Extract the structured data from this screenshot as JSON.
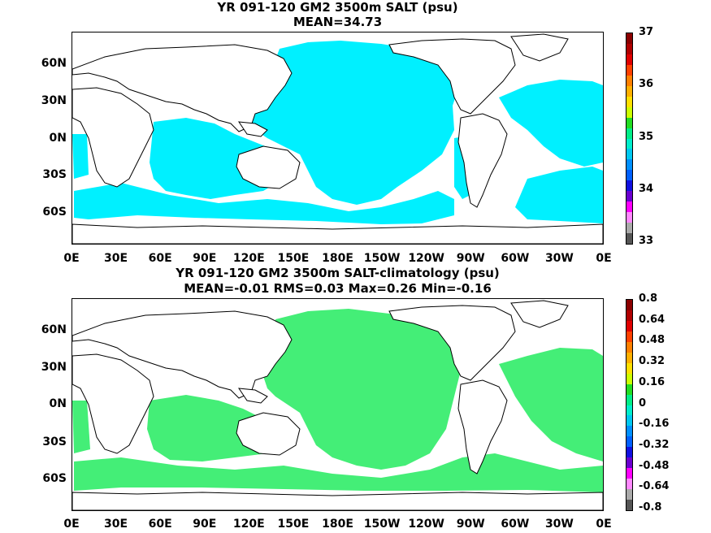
{
  "panels": [
    {
      "title_line1": "YR 091-120 GM2 3500m SALT (psu)",
      "title_line2": "MEAN=34.73",
      "fill_color": "#00f0ff",
      "colorbar": {
        "labels": [
          "37",
          "36",
          "35",
          "34",
          "33"
        ],
        "colors": [
          "#8b0000",
          "#b00000",
          "#e00000",
          "#ff4000",
          "#ff8000",
          "#ffb000",
          "#ffe000",
          "#ccff00",
          "#22dd22",
          "#00ee88",
          "#00eecc",
          "#00c8f0",
          "#0090ff",
          "#0060ff",
          "#1010e0",
          "#6a00d0",
          "#ff00ff",
          "#ff88ff",
          "#aaaaaa",
          "#555555"
        ]
      }
    },
    {
      "title_line1": "YR 091-120 GM2 3500m SALT-climatology (psu)",
      "title_line2": "MEAN=-0.01   RMS=0.03   Max=0.26   Min=-0.16",
      "fill_color": "#44ee77",
      "colorbar": {
        "labels": [
          "0.8",
          "0.64",
          "0.48",
          "0.32",
          "0.16",
          "0",
          "-0.16",
          "-0.32",
          "-0.48",
          "-0.64",
          "-0.8"
        ],
        "colors": [
          "#8b0000",
          "#b00000",
          "#e00000",
          "#ff4000",
          "#ff8000",
          "#ffb000",
          "#ffe000",
          "#ccff00",
          "#22dd22",
          "#00ee88",
          "#00eecc",
          "#00c8f0",
          "#0090ff",
          "#0060ff",
          "#1010e0",
          "#6a00d0",
          "#ff00ff",
          "#ff88ff",
          "#aaaaaa",
          "#555555"
        ]
      }
    }
  ],
  "lat_labels": [
    "60N",
    "30N",
    "0N",
    "30S",
    "60S"
  ],
  "lon_labels": [
    "0E",
    "30E",
    "60E",
    "90E",
    "120E",
    "150E",
    "180E",
    "150W",
    "120W",
    "90W",
    "60W",
    "30W",
    "0E"
  ]
}
